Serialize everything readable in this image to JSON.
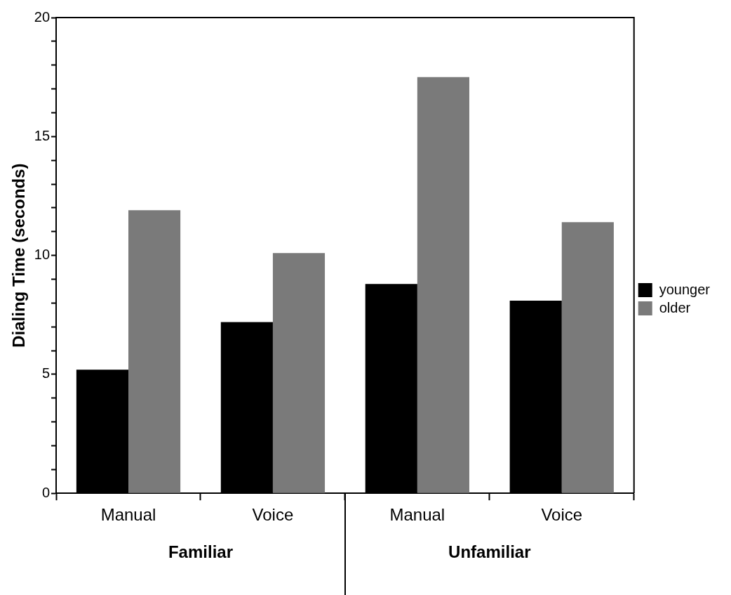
{
  "chart_data": {
    "type": "bar",
    "ylabel": "Dialing Time (seconds)",
    "categories": [
      "Manual",
      "Voice",
      "Manual",
      "Voice"
    ],
    "series": [
      {
        "name": "younger",
        "color": "#000000",
        "values": [
          5.2,
          7.2,
          8.8,
          8.1
        ]
      },
      {
        "name": "older",
        "color": "#7a7a7a",
        "values": [
          11.9,
          10.1,
          17.5,
          11.4
        ]
      }
    ],
    "ylim": [
      0,
      20
    ],
    "yticks": [
      0,
      {
        "value": 1,
        "label": null
      },
      {
        "value": 2,
        "label": null
      },
      {
        "value": 3,
        "label": null
      },
      {
        "value": 4,
        "label": null
      },
      5,
      {
        "value": 6,
        "label": null
      },
      {
        "value": 7,
        "label": null
      },
      {
        "value": 8,
        "label": null
      },
      {
        "value": 9,
        "label": null
      },
      10,
      {
        "value": 11,
        "label": null
      },
      {
        "value": 12,
        "label": null
      },
      {
        "value": 13,
        "label": null
      },
      {
        "value": 14,
        "label": null
      },
      15,
      {
        "value": 16,
        "label": null
      },
      {
        "value": 17,
        "label": null
      },
      {
        "value": 18,
        "label": null
      },
      {
        "value": 19,
        "label": null
      },
      20
    ],
    "annotations": [
      "Familiar",
      "Unfamiliar"
    ],
    "legend": "right",
    "grid": false
  }
}
